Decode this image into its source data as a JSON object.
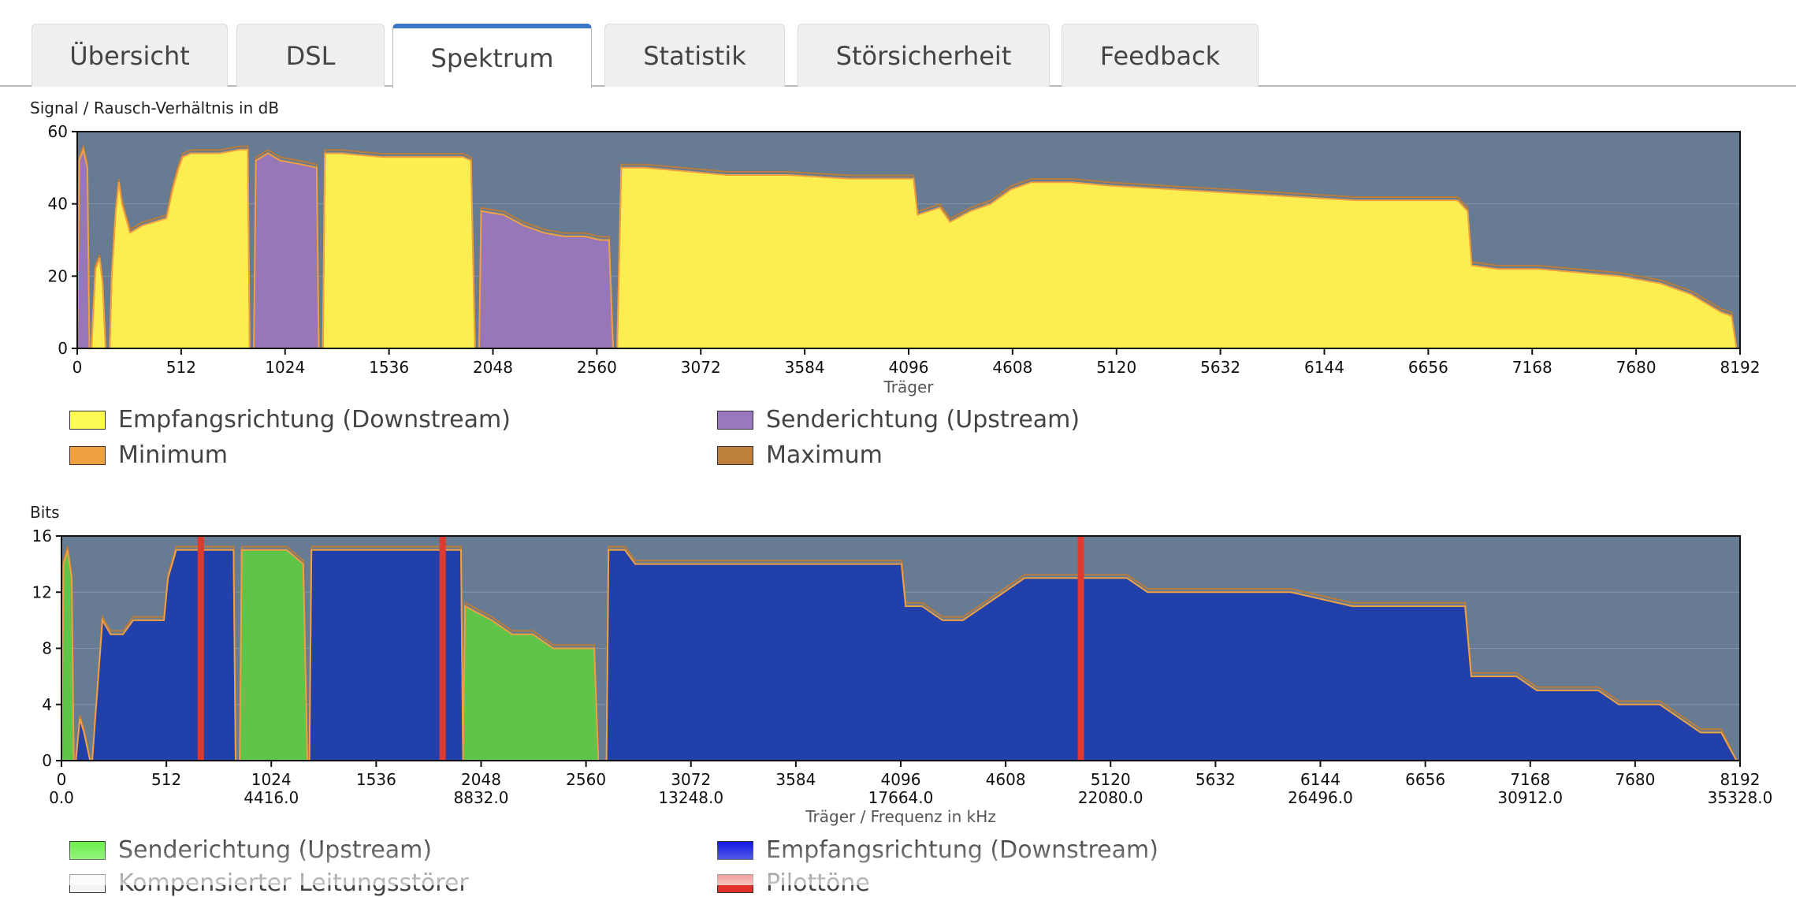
{
  "tabs": [
    {
      "label": "Übersicht",
      "active": false
    },
    {
      "label": "DSL",
      "active": false
    },
    {
      "label": "Spektrum",
      "active": true
    },
    {
      "label": "Statistik",
      "active": false
    },
    {
      "label": "Störsicherheit",
      "active": false
    },
    {
      "label": "Feedback",
      "active": false
    }
  ],
  "colors": {
    "plot_bg": "#677b92",
    "downstream_snr": "#fced50",
    "upstream_snr": "#9877b9",
    "minimum": "#f0a040",
    "maximum": "#b87c3c",
    "upstream_bits": "#5ec44a",
    "downstream_bits": "#2140aa",
    "pilot": "#e03a2e"
  },
  "snr_chart": {
    "title": "Signal / Rausch-Verhältnis in dB",
    "xlabel": "Träger",
    "legend": [
      {
        "label": "Empfangsrichtung (Downstream)",
        "color": "#fcfc55"
      },
      {
        "label": "Senderichtung (Upstream)",
        "color": "#9a78bd"
      },
      {
        "label": "Minimum",
        "color": "#f0a040"
      },
      {
        "label": "Maximum",
        "color": "#bf7f3c"
      }
    ]
  },
  "bits_chart": {
    "title": "Bits",
    "xlabel": "Träger / Frequenz in kHz",
    "legend": [
      {
        "label": "Senderichtung (Upstream)",
        "color": "#66ee44"
      },
      {
        "label": "Empfangsrichtung (Downstream)",
        "color": "#0a10e0"
      },
      {
        "label": "Kompensierter Leitungsstörer",
        "color": "#f4f4f4"
      },
      {
        "label": "Pilottöne",
        "color": "#e0302a"
      }
    ]
  },
  "chart_data": [
    {
      "type": "area",
      "title": "Signal / Rausch-Verhältnis in dB",
      "xlabel": "Träger",
      "ylabel": "",
      "xlim": [
        0,
        8192
      ],
      "ylim": [
        0,
        60
      ],
      "x_ticks": [
        0,
        512,
        1024,
        1536,
        2048,
        2560,
        3072,
        3584,
        4096,
        4608,
        5120,
        5632,
        6144,
        6656,
        7168,
        7680,
        8192
      ],
      "y_ticks": [
        0,
        20,
        40,
        60
      ],
      "grid": true,
      "series": [
        {
          "name": "Senderichtung (Upstream)",
          "segments": [
            [
              [
                0,
                0
              ],
              [
                10,
                52
              ],
              [
                30,
                55
              ],
              [
                50,
                50
              ],
              [
                60,
                0
              ]
            ],
            [
              [
                870,
                0
              ],
              [
                880,
                52
              ],
              [
                940,
                54
              ],
              [
                1000,
                52
              ],
              [
                1100,
                51
              ],
              [
                1180,
                50
              ],
              [
                1190,
                0
              ]
            ],
            [
              [
                1980,
                0
              ],
              [
                1990,
                38
              ],
              [
                2100,
                37
              ],
              [
                2200,
                34
              ],
              [
                2300,
                32
              ],
              [
                2400,
                31
              ],
              [
                2500,
                31
              ],
              [
                2580,
                30
              ],
              [
                2620,
                30
              ],
              [
                2640,
                0
              ]
            ]
          ]
        },
        {
          "name": "Empfangsrichtung (Downstream)",
          "segments": [
            [
              [
                70,
                0
              ],
              [
                90,
                22
              ],
              [
                110,
                25
              ],
              [
                125,
                18
              ],
              [
                140,
                0
              ]
            ],
            [
              [
                160,
                0
              ],
              [
                170,
                20
              ],
              [
                190,
                38
              ],
              [
                205,
                46
              ],
              [
                220,
                40
              ],
              [
                260,
                32
              ],
              [
                290,
                33
              ],
              [
                320,
                34
              ],
              [
                380,
                35
              ],
              [
                440,
                36
              ],
              [
                470,
                44
              ],
              [
                500,
                50
              ],
              [
                520,
                53
              ],
              [
                560,
                54
              ],
              [
                700,
                54
              ],
              [
                800,
                55
              ],
              [
                840,
                55
              ],
              [
                850,
                0
              ]
            ],
            [
              [
                1210,
                0
              ],
              [
                1220,
                54
              ],
              [
                1300,
                54
              ],
              [
                1500,
                53
              ],
              [
                1700,
                53
              ],
              [
                1900,
                53
              ],
              [
                1940,
                52
              ],
              [
                1960,
                0
              ]
            ],
            [
              [
                2660,
                0
              ],
              [
                2680,
                50
              ],
              [
                2800,
                50
              ],
              [
                3000,
                49
              ],
              [
                3200,
                48
              ],
              [
                3500,
                48
              ],
              [
                3800,
                47
              ],
              [
                4000,
                47
              ],
              [
                4120,
                47
              ],
              [
                4140,
                37
              ],
              [
                4250,
                39
              ],
              [
                4300,
                35
              ],
              [
                4400,
                38
              ],
              [
                4500,
                40
              ],
              [
                4600,
                44
              ],
              [
                4700,
                46
              ],
              [
                4900,
                46
              ],
              [
                5100,
                45
              ],
              [
                5400,
                44
              ],
              [
                5700,
                43
              ],
              [
                6000,
                42
              ],
              [
                6300,
                41
              ],
              [
                6600,
                41
              ],
              [
                6800,
                41
              ],
              [
                6850,
                38
              ],
              [
                6870,
                23
              ],
              [
                7000,
                22
              ],
              [
                7200,
                22
              ],
              [
                7400,
                21
              ],
              [
                7600,
                20
              ],
              [
                7800,
                18
              ],
              [
                7950,
                15
              ],
              [
                8100,
                10
              ],
              [
                8150,
                9
              ],
              [
                8175,
                0
              ]
            ]
          ]
        },
        {
          "name": "Minimum",
          "color": "#f0a040"
        },
        {
          "name": "Maximum",
          "color": "#bf7f3c"
        }
      ],
      "pilot_tones_x": []
    },
    {
      "type": "area",
      "title": "Bits",
      "xlabel": "Träger / Frequenz in kHz",
      "ylabel": "",
      "xlim": [
        0,
        8192
      ],
      "ylim": [
        0,
        16
      ],
      "x_ticks": [
        0,
        512,
        1024,
        1536,
        2048,
        2560,
        3072,
        3584,
        4096,
        4608,
        5120,
        5632,
        6144,
        6656,
        7168,
        7680,
        8192
      ],
      "x_ticks_secondary": [
        {
          "x": 0,
          "label": "0.0"
        },
        {
          "x": 1024,
          "label": "4416.0"
        },
        {
          "x": 2048,
          "label": "8832.0"
        },
        {
          "x": 3072,
          "label": "13248.0"
        },
        {
          "x": 4096,
          "label": "17664.0"
        },
        {
          "x": 5120,
          "label": "22080.0"
        },
        {
          "x": 6144,
          "label": "26496.0"
        },
        {
          "x": 7168,
          "label": "30912.0"
        },
        {
          "x": 8192,
          "label": "35328.0"
        }
      ],
      "y_ticks": [
        0,
        4,
        8,
        12,
        16
      ],
      "grid": true,
      "series": [
        {
          "name": "Senderichtung (Upstream)",
          "segments": [
            [
              [
                0,
                0
              ],
              [
                10,
                14
              ],
              [
                30,
                15
              ],
              [
                50,
                13
              ],
              [
                60,
                0
              ]
            ],
            [
              [
                870,
                0
              ],
              [
                880,
                15
              ],
              [
                1000,
                15
              ],
              [
                1100,
                15
              ],
              [
                1180,
                14
              ],
              [
                1200,
                0
              ]
            ],
            [
              [
                1960,
                0
              ],
              [
                1970,
                11
              ],
              [
                2100,
                10
              ],
              [
                2200,
                9
              ],
              [
                2300,
                9
              ],
              [
                2400,
                8
              ],
              [
                2600,
                8
              ],
              [
                2620,
                0
              ]
            ]
          ]
        },
        {
          "name": "Empfangsrichtung (Downstream)",
          "segments": [
            [
              [
                70,
                0
              ],
              [
                90,
                3
              ],
              [
                110,
                2
              ],
              [
                140,
                0
              ]
            ],
            [
              [
                150,
                0
              ],
              [
                180,
                6
              ],
              [
                200,
                10
              ],
              [
                240,
                9
              ],
              [
                300,
                9
              ],
              [
                350,
                10
              ],
              [
                500,
                10
              ],
              [
                520,
                13
              ],
              [
                560,
                15
              ],
              [
                840,
                15
              ],
              [
                850,
                0
              ]
            ],
            [
              [
                1210,
                0
              ],
              [
                1220,
                15
              ],
              [
                1900,
                15
              ],
              [
                1950,
                15
              ],
              [
                1960,
                0
              ]
            ],
            [
              [
                2660,
                0
              ],
              [
                2670,
                15
              ],
              [
                2750,
                15
              ],
              [
                2800,
                14
              ],
              [
                3200,
                14
              ],
              [
                3500,
                14
              ],
              [
                4100,
                14
              ],
              [
                4120,
                11
              ],
              [
                4200,
                11
              ],
              [
                4300,
                10
              ],
              [
                4400,
                10
              ],
              [
                4500,
                11
              ],
              [
                4600,
                12
              ],
              [
                4700,
                13
              ],
              [
                5200,
                13
              ],
              [
                5300,
                12
              ],
              [
                5600,
                12
              ],
              [
                6000,
                12
              ],
              [
                6300,
                11
              ],
              [
                6600,
                11
              ],
              [
                6850,
                11
              ],
              [
                6880,
                6
              ],
              [
                7100,
                6
              ],
              [
                7200,
                5
              ],
              [
                7500,
                5
              ],
              [
                7600,
                4
              ],
              [
                7800,
                4
              ],
              [
                7900,
                3
              ],
              [
                8000,
                2
              ],
              [
                8100,
                2
              ],
              [
                8175,
                0
              ]
            ]
          ]
        },
        {
          "name": "Kompensierter Leitungsstörer",
          "color": "#f4f4f4"
        },
        {
          "name": "Pilottöne",
          "color": "#e0302a"
        }
      ],
      "pilot_tones_x": [
        680,
        1860,
        4975
      ]
    }
  ]
}
